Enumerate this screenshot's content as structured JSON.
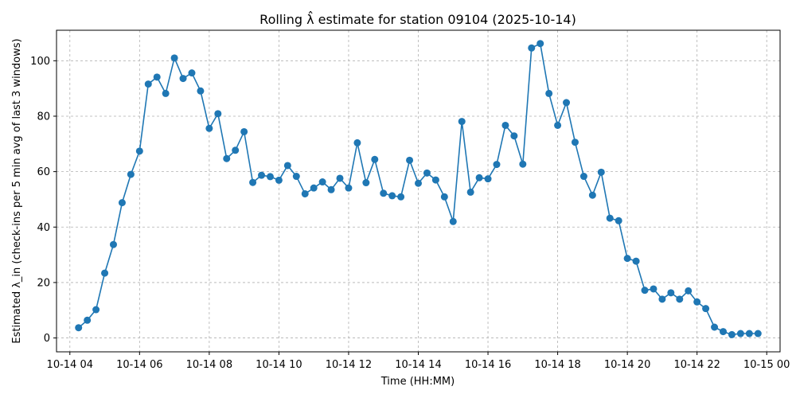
{
  "chart_data": {
    "type": "line",
    "title": "Rolling λ̂ estimate for station 09104 (2025-10-14)",
    "xlabel": "Time (HH:MM)",
    "ylabel": "Estimated λ_in (check-ins per 5 min avg of last 3 windows)",
    "grid": true,
    "color": "#1f77b4",
    "xlim": [
      "2025-10-14 03:37",
      "2025-10-15 00:23"
    ],
    "ylim": [
      -5,
      111
    ],
    "x_ticks": [
      {
        "value": "2025-10-14 04:00",
        "label": "10-14 04"
      },
      {
        "value": "2025-10-14 06:00",
        "label": "10-14 06"
      },
      {
        "value": "2025-10-14 08:00",
        "label": "10-14 08"
      },
      {
        "value": "2025-10-14 10:00",
        "label": "10-14 10"
      },
      {
        "value": "2025-10-14 12:00",
        "label": "10-14 12"
      },
      {
        "value": "2025-10-14 14:00",
        "label": "10-14 14"
      },
      {
        "value": "2025-10-14 16:00",
        "label": "10-14 16"
      },
      {
        "value": "2025-10-14 18:00",
        "label": "10-14 18"
      },
      {
        "value": "2025-10-14 20:00",
        "label": "10-14 20"
      },
      {
        "value": "2025-10-14 22:00",
        "label": "10-14 22"
      },
      {
        "value": "2025-10-15 00:00",
        "label": "10-15 00"
      }
    ],
    "y_ticks": [
      {
        "value": 0,
        "label": "0"
      },
      {
        "value": 20,
        "label": "20"
      },
      {
        "value": 40,
        "label": "40"
      },
      {
        "value": 60,
        "label": "60"
      },
      {
        "value": 80,
        "label": "80"
      },
      {
        "value": 100,
        "label": "100"
      }
    ],
    "x": [
      "2025-10-14 04:15",
      "2025-10-14 04:30",
      "2025-10-14 04:45",
      "2025-10-14 05:00",
      "2025-10-14 05:15",
      "2025-10-14 05:30",
      "2025-10-14 05:45",
      "2025-10-14 06:00",
      "2025-10-14 06:15",
      "2025-10-14 06:30",
      "2025-10-14 06:45",
      "2025-10-14 07:00",
      "2025-10-14 07:15",
      "2025-10-14 07:30",
      "2025-10-14 07:45",
      "2025-10-14 08:00",
      "2025-10-14 08:15",
      "2025-10-14 08:30",
      "2025-10-14 08:45",
      "2025-10-14 09:00",
      "2025-10-14 09:15",
      "2025-10-14 09:30",
      "2025-10-14 09:45",
      "2025-10-14 10:00",
      "2025-10-14 10:15",
      "2025-10-14 10:30",
      "2025-10-14 10:45",
      "2025-10-14 11:00",
      "2025-10-14 11:15",
      "2025-10-14 11:30",
      "2025-10-14 11:45",
      "2025-10-14 12:00",
      "2025-10-14 12:15",
      "2025-10-14 12:30",
      "2025-10-14 12:45",
      "2025-10-14 13:00",
      "2025-10-14 13:15",
      "2025-10-14 13:30",
      "2025-10-14 13:45",
      "2025-10-14 14:00",
      "2025-10-14 14:15",
      "2025-10-14 14:30",
      "2025-10-14 14:45",
      "2025-10-14 15:00",
      "2025-10-14 15:15",
      "2025-10-14 15:30",
      "2025-10-14 15:45",
      "2025-10-14 16:00",
      "2025-10-14 16:15",
      "2025-10-14 16:30",
      "2025-10-14 16:45",
      "2025-10-14 17:00",
      "2025-10-14 17:15",
      "2025-10-14 17:30",
      "2025-10-14 17:45",
      "2025-10-14 18:00",
      "2025-10-14 18:15",
      "2025-10-14 18:30",
      "2025-10-14 18:45",
      "2025-10-14 19:00",
      "2025-10-14 19:15",
      "2025-10-14 19:30",
      "2025-10-14 19:45",
      "2025-10-14 20:00",
      "2025-10-14 20:15",
      "2025-10-14 20:30",
      "2025-10-14 20:45",
      "2025-10-14 21:00",
      "2025-10-14 21:15",
      "2025-10-14 21:30",
      "2025-10-14 21:45",
      "2025-10-14 22:00",
      "2025-10-14 22:15",
      "2025-10-14 22:30",
      "2025-10-14 22:45",
      "2025-10-14 23:00",
      "2025-10-14 23:15",
      "2025-10-14 23:30",
      "2025-10-14 23:45"
    ],
    "y": [
      3.7,
      6.4,
      10.2,
      23.4,
      33.7,
      48.8,
      59.0,
      67.4,
      91.6,
      94.1,
      88.2,
      101.0,
      93.6,
      95.6,
      89.1,
      75.6,
      80.9,
      64.7,
      67.7,
      74.4,
      56.1,
      58.7,
      58.2,
      56.9,
      62.2,
      58.3,
      52.0,
      54.1,
      56.3,
      53.5,
      57.6,
      54.1,
      70.4,
      56.0,
      64.4,
      52.2,
      51.3,
      50.9,
      64.1,
      55.8,
      59.5,
      57.0,
      50.9,
      42.0,
      78.1,
      52.6,
      57.8,
      57.4,
      62.6,
      76.7,
      72.9,
      62.7,
      104.6,
      106.2,
      88.2,
      76.7,
      84.9,
      70.6,
      58.3,
      51.5,
      59.8,
      43.2,
      42.3,
      28.7,
      27.7,
      17.2,
      17.7,
      14.0,
      16.3,
      14.0,
      17.0,
      13.0,
      10.6,
      3.9,
      2.3,
      1.2,
      1.6,
      1.6,
      1.6
    ]
  }
}
